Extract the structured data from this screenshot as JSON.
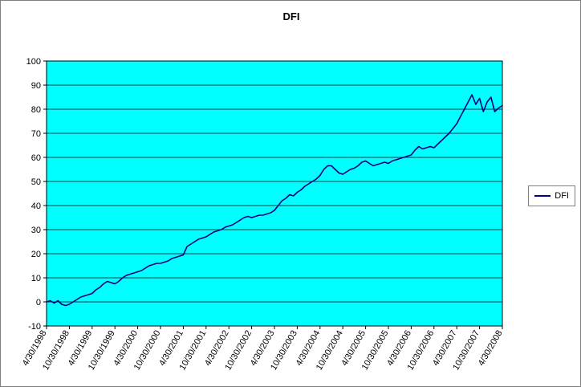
{
  "window": {
    "background": "#FFFFFF"
  },
  "chart_data": {
    "type": "line",
    "title": "DFI",
    "xlabel": "",
    "ylabel": "",
    "ylim": [
      -10,
      100
    ],
    "y_ticks": [
      100,
      90,
      80,
      70,
      60,
      50,
      40,
      30,
      20,
      10,
      0,
      -10
    ],
    "grid": "horizontal-major",
    "plot_background": "#00FFFF",
    "legend_position": "right",
    "x_tick_labels": [
      "4/30/1998",
      "10/30/1998",
      "4/30/1999",
      "10/30/1999",
      "4/30/2000",
      "10/30/2000",
      "4/30/2001",
      "10/30/2001",
      "4/30/2002",
      "10/30/2002",
      "4/30/2003",
      "10/30/2003",
      "4/30/2004",
      "10/30/2004",
      "4/30/2005",
      "10/30/2005",
      "4/30/2006",
      "10/30/2006",
      "4/30/2007",
      "10/30/2007",
      "4/30/2008"
    ],
    "points_per_tick": 6,
    "series": [
      {
        "name": "DFI",
        "color": "#000080",
        "values": [
          0,
          0.5,
          -0.5,
          0.5,
          -1,
          -1.5,
          -1,
          0,
          1,
          2,
          2.5,
          3,
          3.5,
          5,
          6,
          7.5,
          8.5,
          8,
          7.5,
          8.5,
          10,
          11,
          11.5,
          12,
          12.5,
          13,
          14,
          15,
          15.5,
          16,
          16,
          16.5,
          17,
          18,
          18.5,
          19,
          19.5,
          23,
          24,
          25,
          26,
          26.5,
          27,
          28,
          29,
          29.5,
          30,
          31,
          31.5,
          32,
          33,
          34,
          35,
          35.5,
          35,
          35.5,
          36,
          36,
          36.5,
          37,
          38,
          40,
          42,
          43,
          44.5,
          44,
          45.5,
          46.5,
          48,
          49,
          50,
          51,
          52.5,
          55,
          56.5,
          56.5,
          55,
          53.5,
          53,
          54,
          55,
          55.5,
          56.5,
          58,
          58.5,
          57.5,
          56.5,
          57,
          57.5,
          58,
          57.5,
          58.5,
          59,
          59.5,
          60,
          60.5,
          61,
          63,
          64.5,
          63.5,
          64,
          64.5,
          64,
          65.5,
          67,
          68.5,
          70,
          72,
          74,
          77,
          80,
          83,
          86,
          82,
          84.5,
          79,
          83,
          85,
          79,
          80.5,
          81.5
        ]
      }
    ]
  }
}
